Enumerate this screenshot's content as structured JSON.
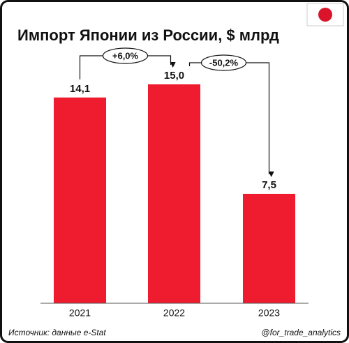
{
  "chart_data": {
    "type": "bar",
    "title": "Импорт Японии из России, $ млрд",
    "categories": [
      "2021",
      "2022",
      "2023"
    ],
    "values": [
      14.1,
      15.0,
      7.5
    ],
    "value_labels": [
      "14,1",
      "15,0",
      "7,5"
    ],
    "color": "#ee1c2e",
    "annotations": [
      "+6,0%",
      "-50,2%"
    ],
    "source": "Источник: данные e-Stat",
    "credit": "@for_trade_analytics"
  }
}
